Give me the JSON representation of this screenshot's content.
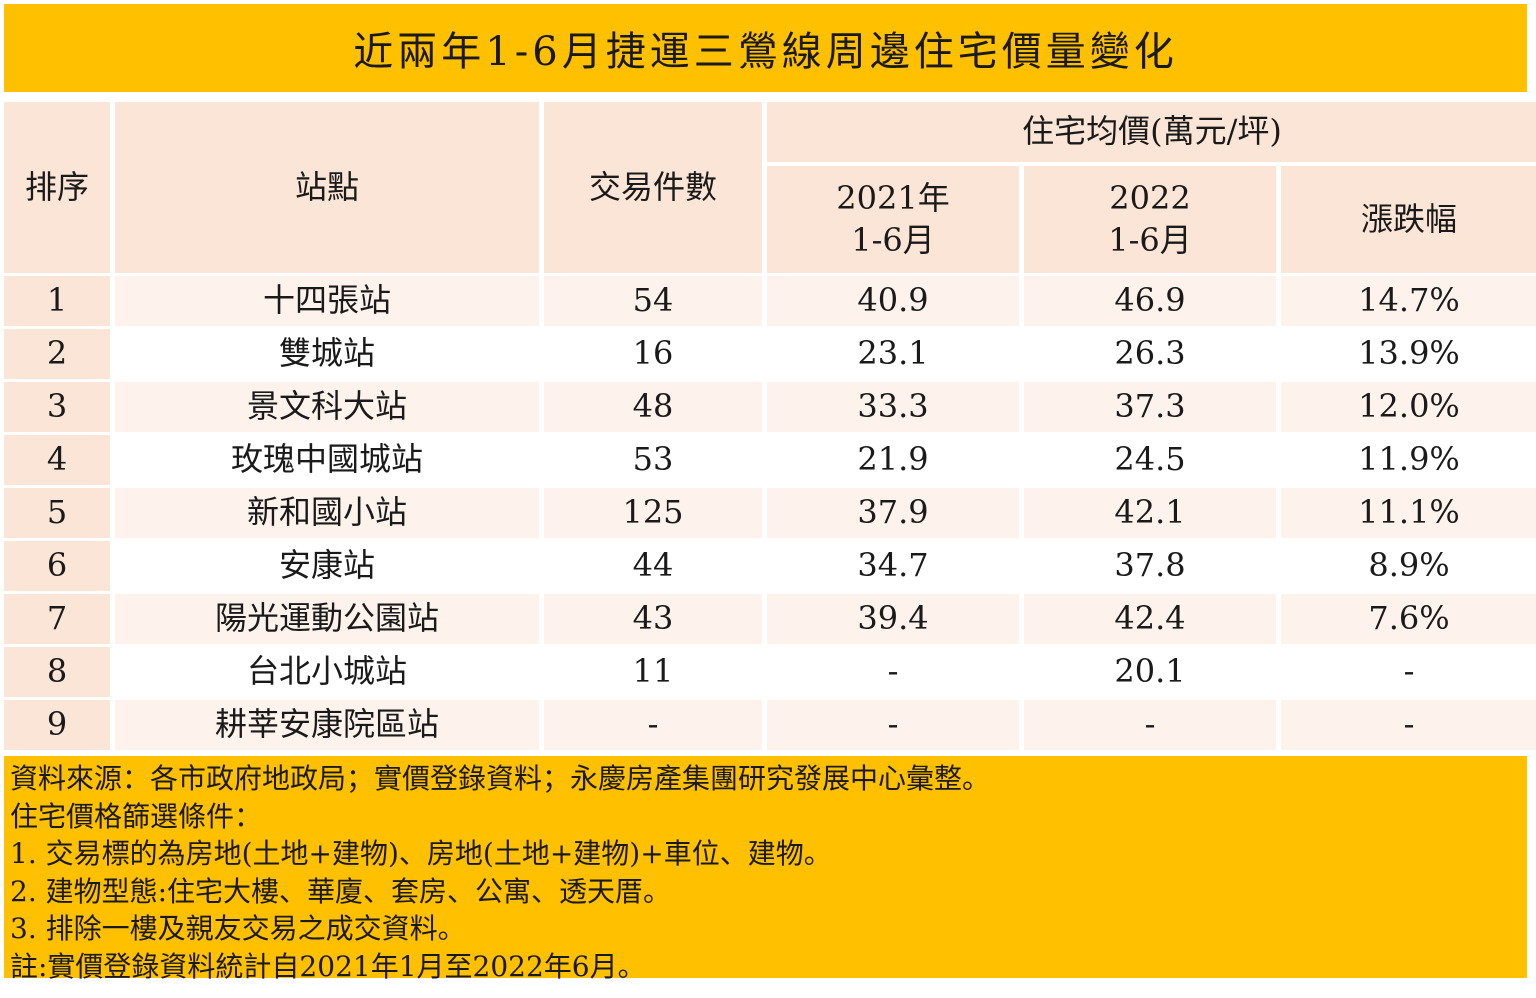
{
  "title": "近兩年1-6月捷運三鶯線周邊住宅價量變化",
  "headers": {
    "rank": "排序",
    "station": "站點",
    "count": "交易件數",
    "price_group": "住宅均價(萬元/坪)",
    "y2021_line1": "2021年",
    "y2021_line2": "1-6月",
    "y2022_line1": "2022",
    "y2022_line2": "1-6月",
    "change": "漲跌幅"
  },
  "chart_data": {
    "type": "table",
    "title": "近兩年1-6月捷運三鶯線周邊住宅價量變化",
    "columns": [
      "排序",
      "站點",
      "交易件數",
      "2021年 1-6月",
      "2022 1-6月",
      "漲跌幅"
    ],
    "rows": [
      [
        "1",
        "十四張站",
        "54",
        "40.9",
        "46.9",
        "14.7%"
      ],
      [
        "2",
        "雙城站",
        "16",
        "23.1",
        "26.3",
        "13.9%"
      ],
      [
        "3",
        "景文科大站",
        "48",
        "33.3",
        "37.3",
        "12.0%"
      ],
      [
        "4",
        "玫瑰中國城站",
        "53",
        "21.9",
        "24.5",
        "11.9%"
      ],
      [
        "5",
        "新和國小站",
        "125",
        "37.9",
        "42.1",
        "11.1%"
      ],
      [
        "6",
        "安康站",
        "44",
        "34.7",
        "37.8",
        "8.9%"
      ],
      [
        "7",
        "陽光運動公園站",
        "43",
        "39.4",
        "42.4",
        "7.6%"
      ],
      [
        "8",
        "台北小城站",
        "11",
        "-",
        "20.1",
        "-"
      ],
      [
        "9",
        "耕莘安康院區站",
        "-",
        "-",
        "-",
        "-"
      ]
    ]
  },
  "footer": [
    "資料來源：各市政府地政局；實價登錄資料；永慶房產集團研究發展中心彙整。",
    "住宅價格篩選條件：",
    "1.  交易標的為房地(土地+建物)、房地(土地+建物)+車位、建物。",
    "2.  建物型態:住宅大樓、華廈、套房、公寓、透天厝。",
    "3.  排除一樓及親友交易之成交資料。",
    "註:實價登錄資料統計自2021年1月至2022年6月。"
  ],
  "colors": {
    "accent": "#ffc000",
    "header_bg": "#fbe5d6",
    "row_alt_bg": "#fdf3ec"
  }
}
